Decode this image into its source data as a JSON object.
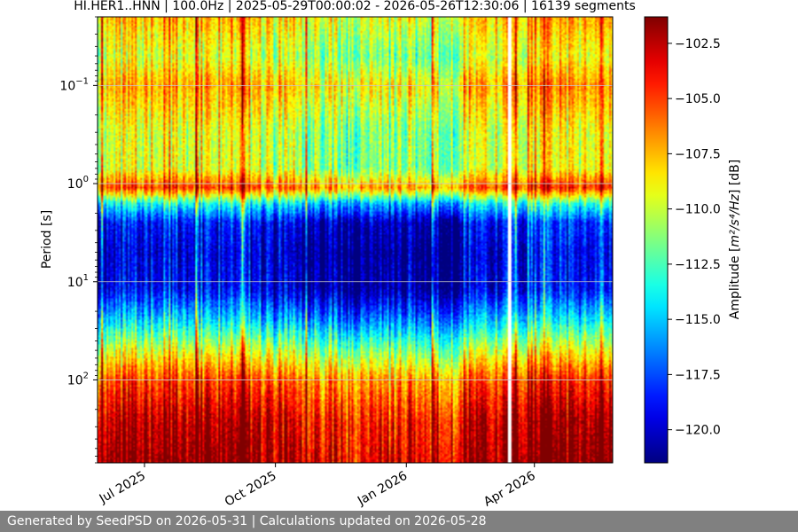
{
  "chart_data": {
    "type": "heatmap",
    "title": "HI.HER1..HNN | 100.0Hz | 2025-05-29T00:00:02 - 2026-05-26T12:30:06 | 16139 segments",
    "xlabel": "",
    "ylabel": "Period [s]",
    "y_scale": "log",
    "y_inverted": true,
    "ylim": [
      0.02,
      700
    ],
    "xlim": [
      "2025-05-29",
      "2026-05-26"
    ],
    "x_ticks": [
      {
        "date": "2025-07-01",
        "label": "Jul 2025"
      },
      {
        "date": "2025-10-01",
        "label": "Oct 2025"
      },
      {
        "date": "2026-01-01",
        "label": "Jan 2026"
      },
      {
        "date": "2026-04-01",
        "label": "Apr 2026"
      }
    ],
    "y_ticks": [
      {
        "value": 0.1,
        "base": "10",
        "exp": "−1"
      },
      {
        "value": 1,
        "base": "10",
        "exp": "0"
      },
      {
        "value": 10,
        "base": "10",
        "exp": "1"
      },
      {
        "value": 100,
        "base": "10",
        "exp": "2"
      }
    ],
    "grid": true,
    "colormap": "jet",
    "colorbar": {
      "label_prefix": "Amplitude [",
      "label_units": "m²/s⁴/Hz",
      "label_suffix": "] [dB]",
      "vmin": -121.5,
      "vmax": -101.3,
      "ticks": [
        -120.0,
        -117.5,
        -115.0,
        -112.5,
        -110.0,
        -107.5,
        -105.0,
        -102.5
      ],
      "tick_labels": [
        "−120.0",
        "−117.5",
        "−115.0",
        "−112.5",
        "−110.0",
        "−107.5",
        "−105.0",
        "−102.5"
      ]
    },
    "period_profile_db": [
      {
        "period": 0.02,
        "db": -108.5
      },
      {
        "period": 0.05,
        "db": -110.5
      },
      {
        "period": 0.1,
        "db": -108.0
      },
      {
        "period": 0.3,
        "db": -110.5
      },
      {
        "period": 0.7,
        "db": -110.5
      },
      {
        "period": 1.1,
        "db": -106.0
      },
      {
        "period": 1.6,
        "db": -114.5
      },
      {
        "period": 2.5,
        "db": -119.5
      },
      {
        "period": 5,
        "db": -120.5
      },
      {
        "period": 12,
        "db": -120.0
      },
      {
        "period": 25,
        "db": -115.5
      },
      {
        "period": 50,
        "db": -110.5
      },
      {
        "period": 100,
        "db": -106.0
      },
      {
        "period": 250,
        "db": -103.5
      },
      {
        "period": 700,
        "db": -102.5
      }
    ],
    "data_gaps": [
      {
        "start": "2026-03-13",
        "end": "2026-03-15"
      }
    ]
  },
  "footer": {
    "text": "Generated by SeedPSD on 2026-05-31 | Calculations updated on 2026-05-28"
  }
}
